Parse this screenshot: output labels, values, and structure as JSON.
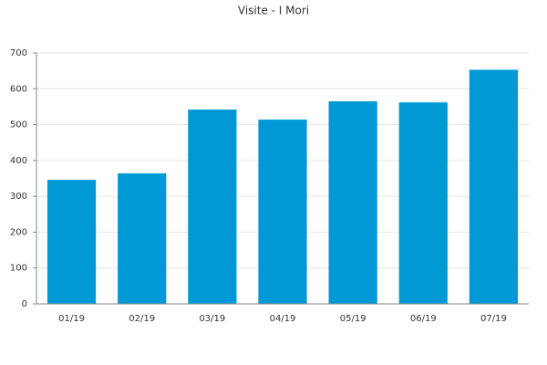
{
  "chart_data": {
    "type": "bar",
    "title": "Visite - I Mori",
    "categories": [
      "01/19",
      "02/19",
      "03/19",
      "04/19",
      "05/19",
      "06/19",
      "07/19"
    ],
    "values": [
      346,
      364,
      542,
      514,
      565,
      562,
      653
    ],
    "color": "#0099d6",
    "ylim": [
      0,
      700
    ],
    "yticks": [
      0,
      100,
      200,
      300,
      400,
      500,
      600,
      700
    ],
    "grid": true
  }
}
